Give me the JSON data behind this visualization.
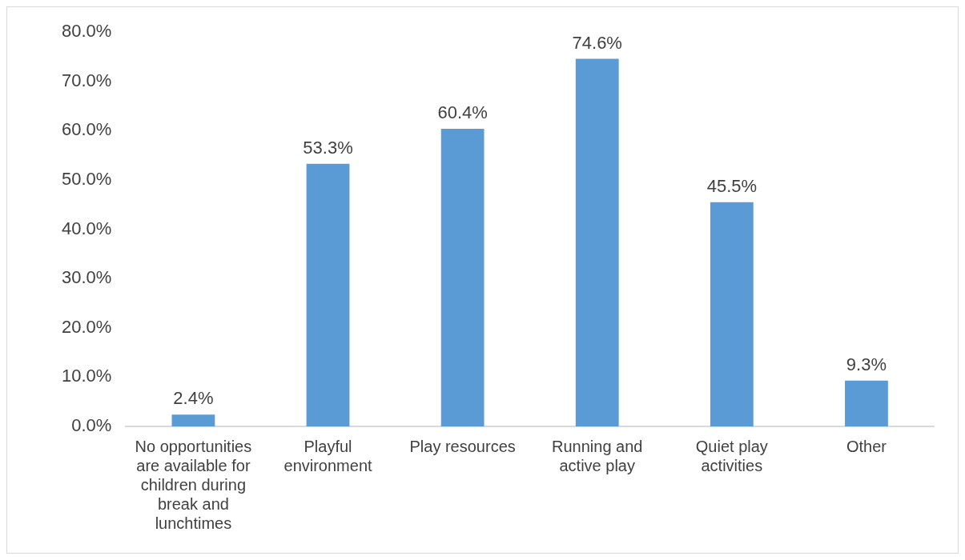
{
  "chart_data": {
    "type": "bar",
    "categories": [
      "No opportunities are available for children during break and lunchtimes",
      "Playful environment",
      "Play resources",
      "Running and active play",
      "Quiet play activities",
      "Other"
    ],
    "values": [
      2.4,
      53.3,
      60.4,
      74.6,
      45.5,
      9.3
    ],
    "value_labels": [
      "2.4%",
      "53.3%",
      "60.4%",
      "74.6%",
      "45.5%",
      "9.3%"
    ],
    "color": "#5b9bd5",
    "ylim": [
      0,
      80
    ],
    "yticks": [
      {
        "value": 0,
        "label": "0.0%"
      },
      {
        "value": 10,
        "label": "10.0%"
      },
      {
        "value": 20,
        "label": "20.0%"
      },
      {
        "value": 30,
        "label": "30.0%"
      },
      {
        "value": 40,
        "label": "40.0%"
      },
      {
        "value": 50,
        "label": "50.0%"
      },
      {
        "value": 60,
        "label": "60.0%"
      },
      {
        "value": 70,
        "label": "70.0%"
      },
      {
        "value": 80,
        "label": "80.0%"
      }
    ],
    "grid": false,
    "legend": false
  }
}
